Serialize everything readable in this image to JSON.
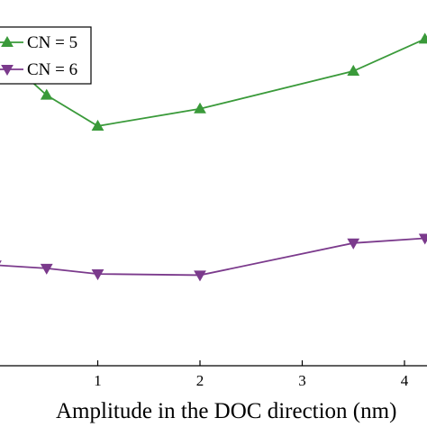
{
  "chart_data": {
    "type": "line",
    "title": "",
    "xlabel": "Amplitude in the DOC direction (nm)",
    "ylabel": "",
    "x_ticks": [
      1,
      2,
      3,
      4
    ],
    "xlim": [
      0,
      4.2
    ],
    "ylim": [
      0,
      1
    ],
    "grid": false,
    "legend_position": "top-left",
    "series": [
      {
        "name": "CN = 5",
        "color": "#3a9a3a",
        "marker": "triangle-up",
        "x": [
          0,
          0.5,
          1,
          2,
          3.5,
          4.2
        ],
        "y": [
          0.79,
          0.675,
          0.598,
          0.641,
          0.735,
          0.815
        ]
      },
      {
        "name": "CN = 6",
        "color": "#7b3a8c",
        "marker": "triangle-down",
        "x": [
          0,
          0.5,
          1,
          2,
          3.5,
          4.2
        ],
        "y": [
          0.251,
          0.243,
          0.229,
          0.226,
          0.306,
          0.318
        ]
      }
    ]
  }
}
